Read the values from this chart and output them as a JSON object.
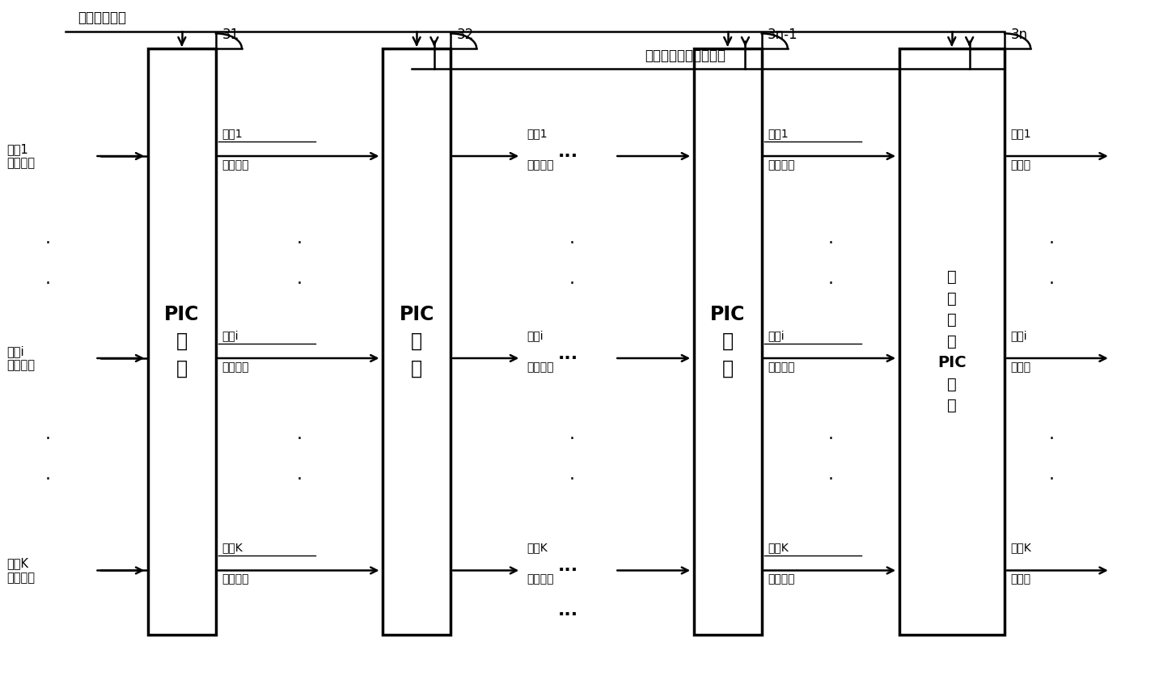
{
  "figure_width": 14.54,
  "figure_height": 8.36,
  "bg_color": "#ffffff",
  "font_name": "SimHei",
  "top1_label": "全部波束信号",
  "top2_label": "各用户的多径时延信息",
  "block_nums": [
    "31",
    "32",
    "3n-1",
    "3n"
  ],
  "pic_label": "PIC\n单\n元",
  "last_pic_label": "最\n后\n一\n级\nPIC\n单\n元",
  "user1_beam": "用户1\n波束信号",
  "useri_beam": "用户i\n波束信号",
  "userk_beam": "用户K\n波束信号",
  "user1_soft": "用户1\n软输出",
  "useri_soft": "用户i\n软输出",
  "userk_soft": "用户K\n软输出",
  "ellipsis": "···"
}
